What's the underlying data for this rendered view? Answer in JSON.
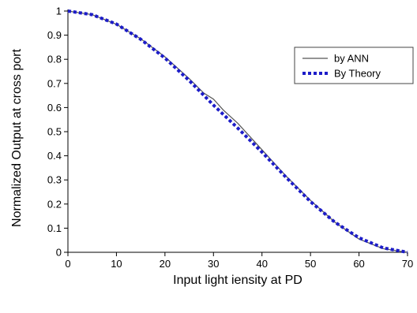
{
  "chart_data": {
    "type": "line",
    "title": "",
    "xlabel": "Input light iensity at PD",
    "ylabel": "Normalized Output at cross port",
    "xlim": [
      0,
      70
    ],
    "ylim": [
      0,
      1
    ],
    "x_ticks": [
      0,
      10,
      20,
      30,
      40,
      50,
      60,
      70
    ],
    "x_tick_labels": [
      "0",
      "10",
      "20",
      "30",
      "40",
      "50",
      "60",
      "70"
    ],
    "y_ticks": [
      0,
      0.1,
      0.2,
      0.3,
      0.4,
      0.5,
      0.6,
      0.7,
      0.8,
      0.9,
      1
    ],
    "y_tick_labels": [
      "0",
      "0.1",
      "0.2",
      "0.3",
      "0.4",
      "0.5",
      "0.6",
      "0.7",
      "0.8",
      "0.9",
      "1"
    ],
    "grid": false,
    "legend_position": "top-right",
    "series": [
      {
        "name": "by ANN",
        "color": "#555555",
        "style": "solid",
        "x": [
          0,
          5,
          10,
          15,
          20,
          25,
          28,
          30,
          32,
          35,
          40,
          45,
          50,
          55,
          60,
          65,
          70
        ],
        "y": [
          1.0,
          0.985,
          0.945,
          0.885,
          0.81,
          0.72,
          0.66,
          0.635,
          0.59,
          0.535,
          0.425,
          0.315,
          0.215,
          0.125,
          0.055,
          0.015,
          0.0
        ]
      },
      {
        "name": "By Theory",
        "color": "#1c1cc8",
        "style": "dashed",
        "x": [
          0,
          5,
          10,
          15,
          20,
          25,
          30,
          35,
          40,
          45,
          50,
          55,
          60,
          65,
          70
        ],
        "y": [
          1.0,
          0.985,
          0.946,
          0.883,
          0.805,
          0.712,
          0.61,
          0.515,
          0.415,
          0.31,
          0.21,
          0.125,
          0.06,
          0.018,
          0.0
        ]
      }
    ]
  }
}
